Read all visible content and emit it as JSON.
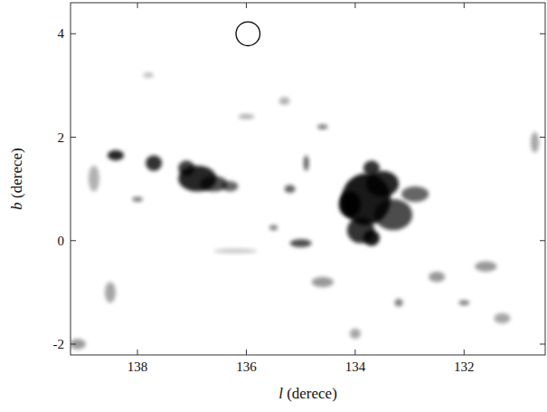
{
  "chart_data": {
    "type": "map",
    "xlabel": "l (derece)",
    "ylabel": "b (derece)",
    "xlim": [
      139.23,
      130.51
    ],
    "ylim": [
      -2.21,
      4.6
    ],
    "xticks": [
      138,
      136,
      134,
      132
    ],
    "yticks": [
      -2,
      0,
      2,
      4
    ],
    "tick_labels": true,
    "grid": false,
    "color": "#000000",
    "x": [
      133.8,
      133.5,
      134.1,
      133.3,
      133.9,
      133.7,
      132.9,
      133.7,
      136.9,
      136.6,
      137.1,
      136.3,
      137.7,
      138.4,
      135.2,
      134.9,
      135.0,
      134.6,
      135.5,
      138.8,
      138.0,
      131.6,
      132.5,
      134.6,
      138.5,
      132.0,
      133.2,
      139.1,
      130.7,
      136.0,
      137.8,
      135.3,
      131.3,
      134.0,
      136.2
    ],
    "values": [
      0.8,
      1.1,
      0.7,
      0.5,
      0.2,
      0.05,
      0.9,
      1.4,
      1.2,
      1.1,
      1.4,
      1.05,
      1.5,
      1.65,
      1.0,
      1.5,
      -0.05,
      2.2,
      0.25,
      1.2,
      0.8,
      -0.5,
      -0.7,
      -0.8,
      -1.0,
      -1.2,
      -1.2,
      -2.0,
      1.9,
      2.4,
      3.2,
      2.7,
      -1.5,
      -1.8,
      -0.2
    ],
    "widths": [
      0.9,
      0.6,
      0.4,
      0.7,
      0.5,
      0.3,
      0.5,
      0.3,
      0.7,
      0.5,
      0.3,
      0.3,
      0.3,
      0.3,
      0.2,
      0.1,
      0.4,
      0.2,
      0.15,
      0.2,
      0.2,
      0.4,
      0.3,
      0.4,
      0.2,
      0.2,
      0.15,
      0.3,
      0.15,
      0.3,
      0.2,
      0.2,
      0.3,
      0.2,
      0.8
    ],
    "heights": [
      1.0,
      0.5,
      0.5,
      0.6,
      0.5,
      0.3,
      0.3,
      0.3,
      0.5,
      0.3,
      0.3,
      0.2,
      0.3,
      0.2,
      0.15,
      0.3,
      0.15,
      0.1,
      0.1,
      0.5,
      0.1,
      0.2,
      0.2,
      0.2,
      0.4,
      0.1,
      0.15,
      0.2,
      0.4,
      0.1,
      0.1,
      0.15,
      0.2,
      0.2,
      0.1
    ],
    "intensities": [
      0.9,
      0.85,
      0.95,
      0.7,
      0.8,
      0.9,
      0.6,
      0.8,
      0.85,
      0.7,
      0.75,
      0.6,
      0.8,
      0.85,
      0.6,
      0.6,
      0.7,
      0.5,
      0.5,
      0.3,
      0.5,
      0.4,
      0.4,
      0.4,
      0.35,
      0.5,
      0.5,
      0.4,
      0.35,
      0.3,
      0.25,
      0.3,
      0.35,
      0.35,
      0.2
    ],
    "circle": {
      "x": 135.97,
      "y": 4.0,
      "size": 0.22
    }
  }
}
